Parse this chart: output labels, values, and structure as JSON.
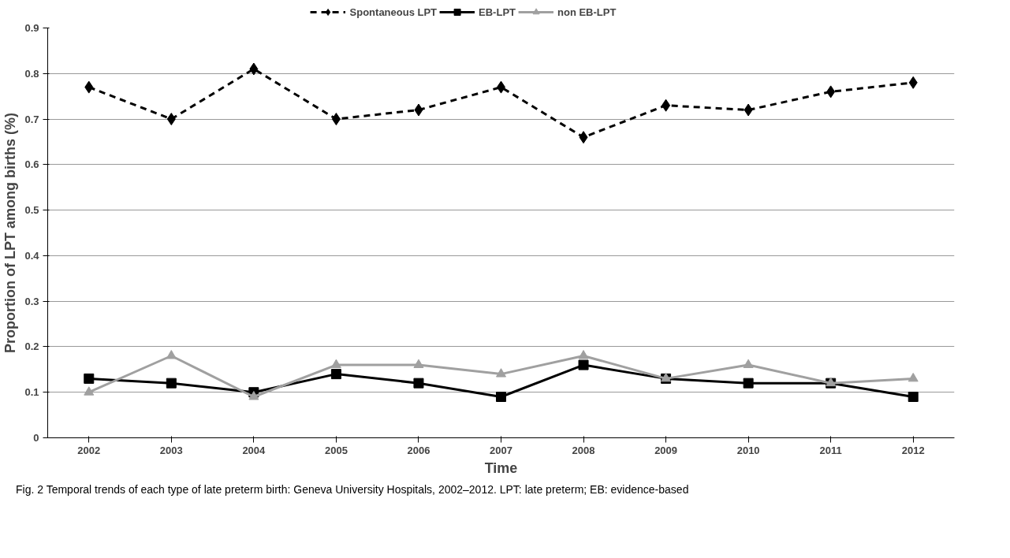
{
  "chart_data": {
    "type": "line",
    "xlabel": "Time",
    "ylabel": "Proportion of LPT among births (%)",
    "categories": [
      "2002",
      "2003",
      "2004",
      "2005",
      "2006",
      "2007",
      "2008",
      "2009",
      "2010",
      "2011",
      "2012"
    ],
    "series": [
      {
        "name": "Spontaneous LPT",
        "color": "#000000",
        "marker": "diamond",
        "line_style": "dashed",
        "values": [
          0.77,
          0.7,
          0.81,
          0.7,
          0.72,
          0.77,
          0.66,
          0.73,
          0.72,
          0.76,
          0.78
        ]
      },
      {
        "name": "EB-LPT",
        "color": "#000000",
        "marker": "square",
        "line_style": "solid",
        "values": [
          0.13,
          0.12,
          0.1,
          0.14,
          0.12,
          0.09,
          0.16,
          0.13,
          0.12,
          0.12,
          0.09
        ]
      },
      {
        "name": "non EB-LPT",
        "color": "#a0a0a0",
        "marker": "triangle",
        "line_style": "solid",
        "values": [
          0.1,
          0.18,
          0.09,
          0.16,
          0.16,
          0.14,
          0.18,
          0.13,
          0.16,
          0.12,
          0.13
        ]
      }
    ],
    "ylim": [
      0,
      0.9
    ],
    "yticks": [
      0,
      0.1,
      0.2,
      0.3,
      0.4,
      0.5,
      0.6,
      0.7,
      0.8,
      0.9
    ],
    "grid": "y",
    "legend": "top",
    "annotations": [
      "Fig. 2 Temporal trends of each type of late preterm birth: Geneva University Hospitals, 2002–2012. LPT: late preterm; EB: evidence-based"
    ]
  }
}
